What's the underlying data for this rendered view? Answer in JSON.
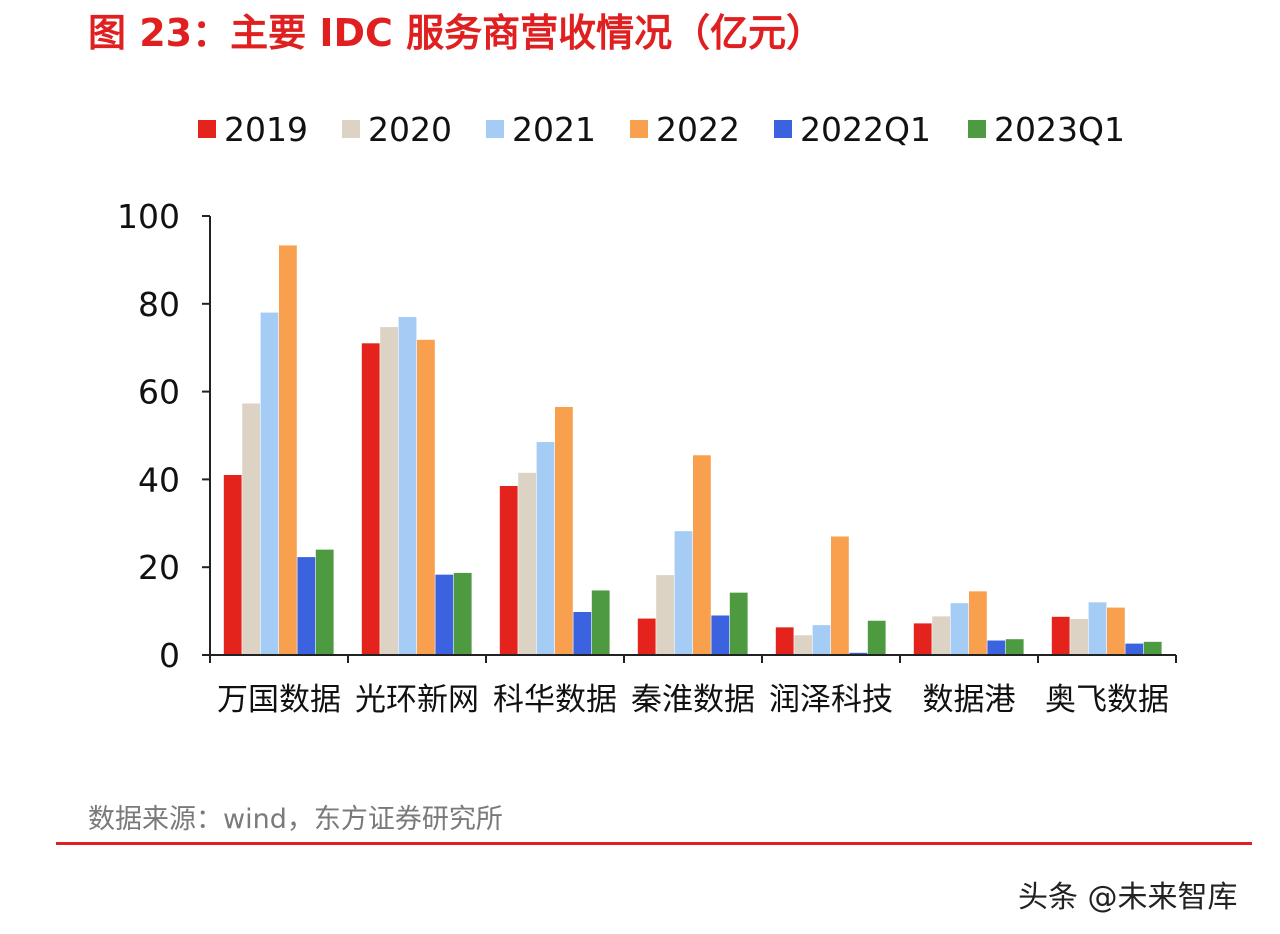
{
  "title": "图 23：主要 IDC 服务商营收情况（亿元）",
  "source": "数据来源：wind，东方证券研究所",
  "watermark": "头条 @未来智库",
  "colors": {
    "title": "#e02020",
    "divider": "#e02020"
  },
  "chart_data": {
    "type": "bar",
    "categories": [
      "万国数据",
      "光环新网",
      "科华数据",
      "秦淮数据",
      "润泽科技",
      "数据港",
      "奥飞数据"
    ],
    "ylim": [
      0,
      100
    ],
    "yticks": [
      0,
      20,
      40,
      60,
      80,
      100
    ],
    "legend_position": "top",
    "grid": false,
    "series": [
      {
        "name": "2019",
        "color": "#e3231c",
        "values": [
          41,
          71,
          38.5,
          8.3,
          6.3,
          7.2,
          8.7
        ]
      },
      {
        "name": "2020",
        "color": "#ddd3c4",
        "values": [
          57.3,
          74.7,
          41.5,
          18.2,
          4.5,
          8.8,
          8.2
        ]
      },
      {
        "name": "2021",
        "color": "#a4ccf4",
        "values": [
          78,
          77,
          48.5,
          28.2,
          6.8,
          11.8,
          12
        ]
      },
      {
        "name": "2022",
        "color": "#f9a04f",
        "values": [
          93.3,
          71.8,
          56.5,
          45.5,
          27,
          14.5,
          10.8
        ]
      },
      {
        "name": "2022Q1",
        "color": "#3b63e0",
        "values": [
          22.3,
          18.3,
          9.8,
          9,
          0.5,
          3.3,
          2.6
        ]
      },
      {
        "name": "2023Q1",
        "color": "#4d9a40",
        "values": [
          24,
          18.7,
          14.7,
          14.2,
          7.8,
          3.6,
          3
        ]
      }
    ]
  }
}
